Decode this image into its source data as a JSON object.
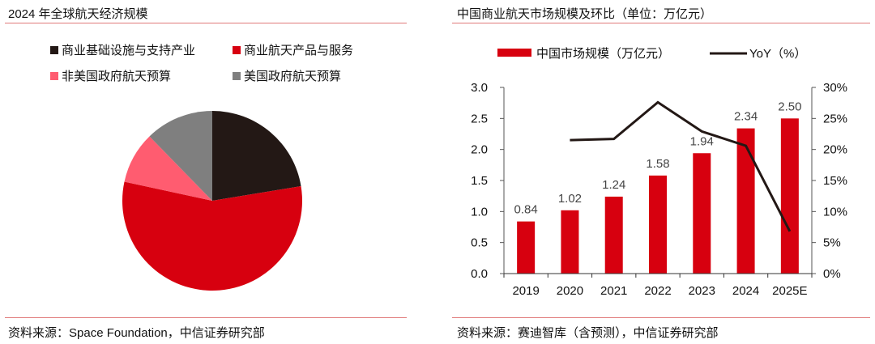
{
  "left_panel": {
    "title": "2024 年全球航天经济规模",
    "source": "资料来源：Space Foundation，中信证券研究部"
  },
  "right_panel": {
    "title": "中国商业航天市场规模及环比（单位：万亿元）",
    "source": "资料来源：赛迪智库（含预测），中信证券研究部"
  },
  "colors": {
    "rule": "#E07A7A",
    "red": "#D7000F",
    "dark": "#231815",
    "pink": "#FF5C70",
    "gray": "#7F7F7F"
  },
  "chart_data": [
    {
      "type": "pie",
      "title": "2024 年全球航天经济规模",
      "legend_position": "top",
      "slices": [
        {
          "label": "商业基础设施与支持产业",
          "value": 22.4,
          "color": "#231815"
        },
        {
          "label": "商业航天产品与服务",
          "value": 56.0,
          "color": "#D7000F"
        },
        {
          "label": "非美国政府航天预算",
          "value": 9.3,
          "color": "#FF5C70"
        },
        {
          "label": "美国政府航天预算",
          "value": 12.3,
          "color": "#7F7F7F"
        }
      ],
      "legend_order": [
        0,
        1,
        2,
        3
      ]
    },
    {
      "type": "bar",
      "title": "中国商业航天市场规模及环比（单位：万亿元）",
      "categories": [
        "2019",
        "2020",
        "2021",
        "2022",
        "2023",
        "2024",
        "2025E"
      ],
      "series": [
        {
          "name": "中国市场规模（万亿元）",
          "kind": "bar",
          "axis": "left",
          "color": "#D7000F",
          "values": [
            0.84,
            1.02,
            1.24,
            1.58,
            1.94,
            2.34,
            2.5
          ],
          "labels": [
            "0.84",
            "1.02",
            "1.24",
            "1.58",
            "1.94",
            "2.34",
            "2.50"
          ]
        },
        {
          "name": "YoY（%）",
          "kind": "line",
          "axis": "right",
          "color": "#231815",
          "values": [
            null,
            21.5,
            21.7,
            27.6,
            22.9,
            20.6,
            6.8
          ]
        }
      ],
      "left_axis": {
        "ylim": [
          0,
          3.0
        ],
        "ticks": [
          "0.0",
          "0.5",
          "1.0",
          "1.5",
          "2.0",
          "2.5",
          "3.0"
        ]
      },
      "right_axis": {
        "ylim": [
          0,
          30
        ],
        "ticks": [
          "0%",
          "5%",
          "10%",
          "15%",
          "20%",
          "25%",
          "30%"
        ]
      },
      "legend_position": "top",
      "grid": false
    }
  ]
}
